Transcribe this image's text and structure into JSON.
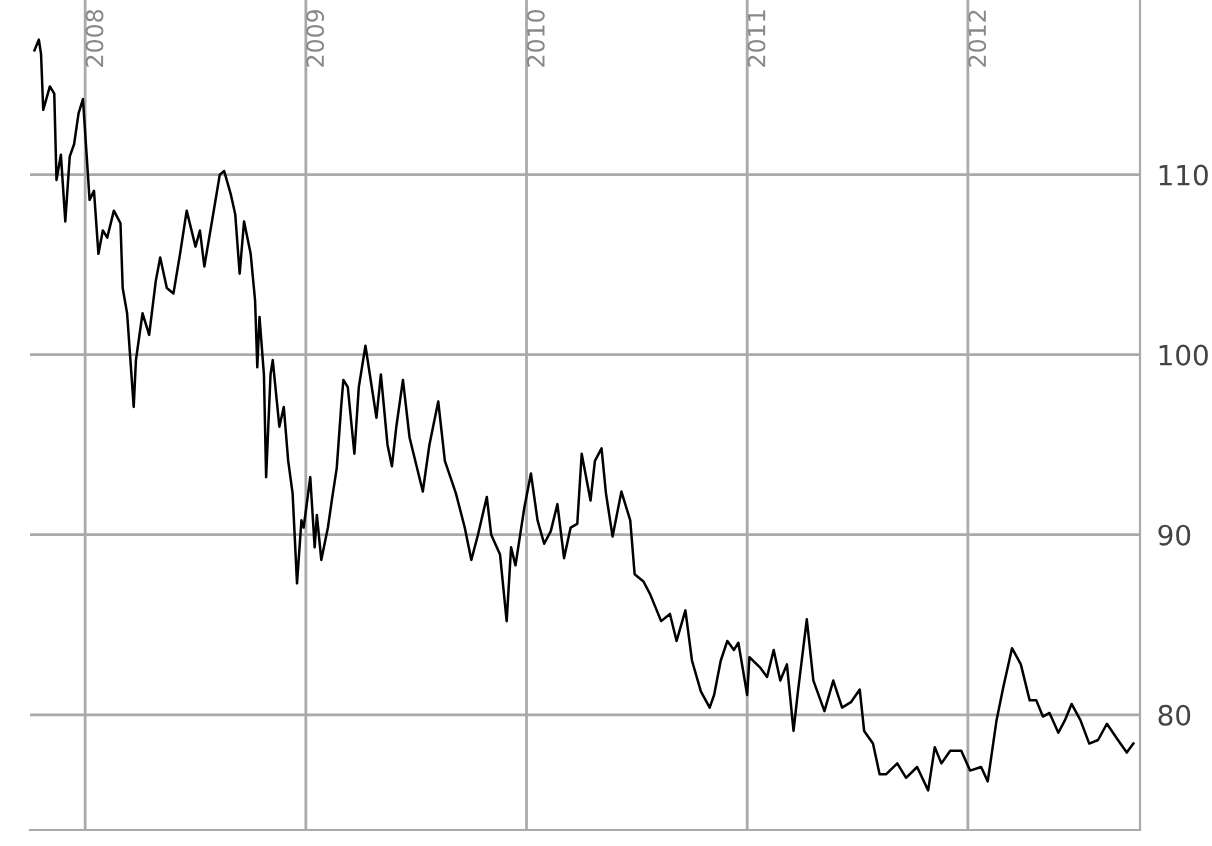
{
  "chart_data": {
    "type": "line",
    "x": [
      2007.77,
      2007.79,
      2007.8,
      2007.81,
      2007.84,
      2007.86,
      2007.87,
      2007.89,
      2007.91,
      2007.93,
      2007.95,
      2007.97,
      2007.99,
      2008.02,
      2008.04,
      2008.06,
      2008.08,
      2008.1,
      2008.13,
      2008.16,
      2008.17,
      2008.19,
      2008.22,
      2008.23,
      2008.26,
      2008.29,
      2008.32,
      2008.34,
      2008.37,
      2008.4,
      2008.43,
      2008.46,
      2008.5,
      2008.52,
      2008.54,
      2008.58,
      2008.61,
      2008.63,
      2008.66,
      2008.68,
      2008.7,
      2008.72,
      2008.75,
      2008.77,
      2008.78,
      2008.79,
      2008.81,
      2008.82,
      2008.84,
      2008.85,
      2008.88,
      2008.9,
      2008.92,
      2008.94,
      2008.96,
      2008.98,
      2008.99,
      2009.02,
      2009.04,
      2009.05,
      2009.07,
      2009.1,
      2009.12,
      2009.14,
      2009.16,
      2009.17,
      2009.19,
      2009.22,
      2009.24,
      2009.27,
      2009.29,
      2009.32,
      2009.34,
      2009.37,
      2009.39,
      2009.41,
      2009.44,
      2009.47,
      2009.53,
      2009.56,
      2009.6,
      2009.63,
      2009.68,
      2009.72,
      2009.75,
      2009.78,
      2009.82,
      2009.84,
      2009.88,
      2009.91,
      2009.93,
      2009.95,
      2009.99,
      2010.02,
      2010.05,
      2010.08,
      2010.11,
      2010.14,
      2010.17,
      2010.2,
      2010.23,
      2010.25,
      2010.29,
      2010.31,
      2010.34,
      2010.36,
      2010.39,
      2010.43,
      2010.47,
      2010.49,
      2010.53,
      2010.56,
      2010.61,
      2010.65,
      2010.68,
      2010.72,
      2010.75,
      2010.79,
      2010.83,
      2010.85,
      2010.88,
      2010.91,
      2010.94,
      2010.96,
      2011.0,
      2011.01,
      2011.06,
      2011.09,
      2011.12,
      2011.15,
      2011.18,
      2011.21,
      2011.23,
      2011.27,
      2011.3,
      2011.35,
      2011.39,
      2011.43,
      2011.47,
      2011.51,
      2011.53,
      2011.57,
      2011.6,
      2011.63,
      2011.68,
      2011.72,
      2011.77,
      2011.82,
      2011.85,
      2011.88,
      2011.92,
      2011.97,
      2012.01,
      2012.06,
      2012.09,
      2012.13,
      2012.16,
      2012.2,
      2012.24,
      2012.28,
      2012.31,
      2012.34,
      2012.37,
      2012.41,
      2012.44,
      2012.47,
      2012.51,
      2012.55,
      2012.59,
      2012.63,
      2012.68,
      2012.72,
      2012.75
    ],
    "series": [
      {
        "color": "#000000",
        "values": [
          116.9,
          117.5,
          116.7,
          113.6,
          114.9,
          114.5,
          109.7,
          111.1,
          107.4,
          111.0,
          111.7,
          113.4,
          114.2,
          108.6,
          109.1,
          105.6,
          106.9,
          106.5,
          108.0,
          107.3,
          103.7,
          102.3,
          97.1,
          99.7,
          102.3,
          101.1,
          104.1,
          105.4,
          103.7,
          103.4,
          105.6,
          108.0,
          106.0,
          106.9,
          104.9,
          107.8,
          110.0,
          110.2,
          108.9,
          107.8,
          104.5,
          107.4,
          105.6,
          103.0,
          99.3,
          102.1,
          98.9,
          93.2,
          98.9,
          99.7,
          96.0,
          97.1,
          94.1,
          92.3,
          87.3,
          90.8,
          90.4,
          93.2,
          89.3,
          91.1,
          88.6,
          90.4,
          92.1,
          93.7,
          97.1,
          98.6,
          98.2,
          94.5,
          98.2,
          100.5,
          98.9,
          96.5,
          98.9,
          95.0,
          93.8,
          96.0,
          98.6,
          95.4,
          92.4,
          95.0,
          97.4,
          94.1,
          92.3,
          90.4,
          88.6,
          90.0,
          92.1,
          90.0,
          88.9,
          85.2,
          89.3,
          88.3,
          91.5,
          93.4,
          90.8,
          89.5,
          90.2,
          91.7,
          88.7,
          90.4,
          90.6,
          94.5,
          91.9,
          94.1,
          94.8,
          92.3,
          89.9,
          92.4,
          90.8,
          87.8,
          87.4,
          86.7,
          85.2,
          85.6,
          84.1,
          85.8,
          83.0,
          81.3,
          80.4,
          81.1,
          83.0,
          84.1,
          83.6,
          84.0,
          81.1,
          83.2,
          82.6,
          82.1,
          83.6,
          81.9,
          82.8,
          79.1,
          81.3,
          85.3,
          81.9,
          80.2,
          81.9,
          80.4,
          80.7,
          81.4,
          79.1,
          78.4,
          76.7,
          76.7,
          77.3,
          76.5,
          77.1,
          75.8,
          78.2,
          77.3,
          78.0,
          78.0,
          76.9,
          77.1,
          76.3,
          79.7,
          81.5,
          83.7,
          82.8,
          80.8,
          80.8,
          79.9,
          80.1,
          79.0,
          79.7,
          80.6,
          79.7,
          78.4,
          78.6,
          79.5,
          78.6,
          77.9,
          78.4
        ]
      }
    ],
    "xlim": [
      2007.75,
      2012.78
    ],
    "ylim": [
      73.6,
      119.7
    ],
    "xticks": [
      2008,
      2009,
      2010,
      2011,
      2012
    ],
    "yticks": [
      80,
      90,
      100,
      110
    ],
    "grid": true,
    "legend": false,
    "marker": "none",
    "line_style": "solid"
  }
}
